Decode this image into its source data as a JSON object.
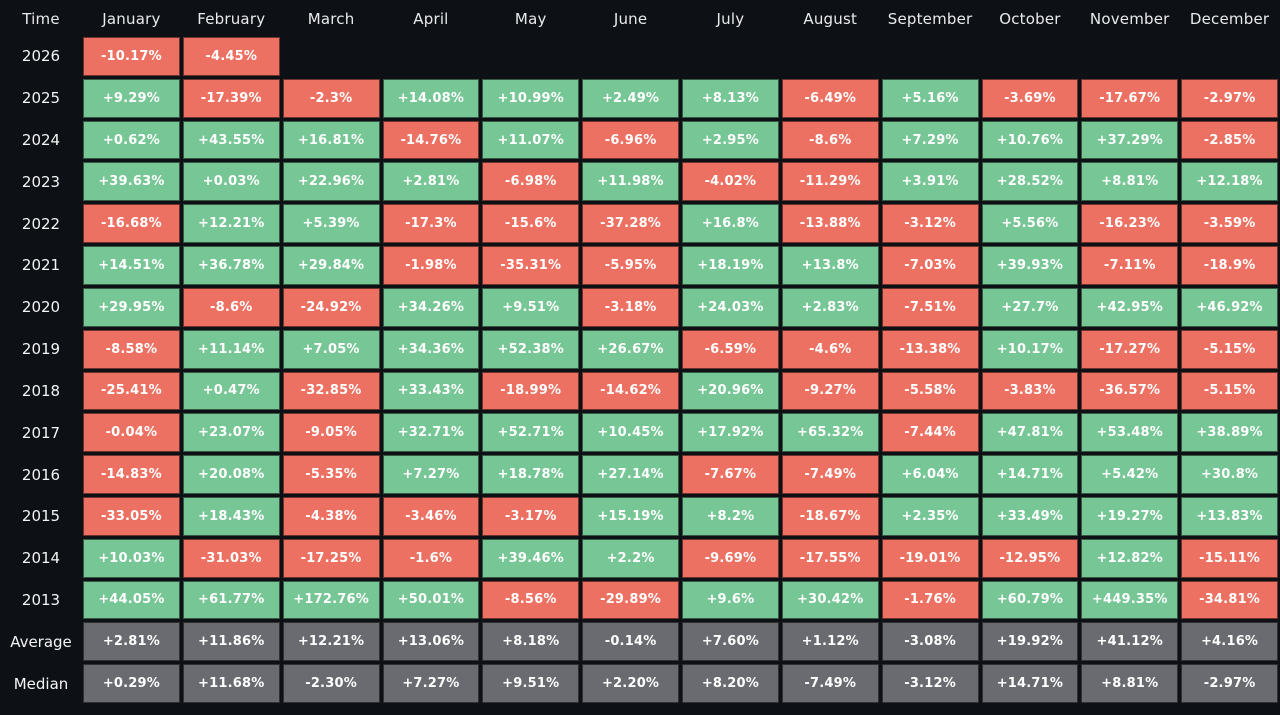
{
  "chart_data": {
    "type": "heatmap",
    "corner": "Time",
    "unit": "%",
    "columns": [
      "January",
      "February",
      "March",
      "April",
      "May",
      "June",
      "July",
      "August",
      "September",
      "October",
      "November",
      "December"
    ],
    "rows": [
      {
        "label": "2026",
        "type": "year",
        "values": [
          "-10.17%",
          "-4.45%",
          null,
          null,
          null,
          null,
          null,
          null,
          null,
          null,
          null,
          null
        ]
      },
      {
        "label": "2025",
        "type": "year",
        "values": [
          "+9.29%",
          "-17.39%",
          "-2.3%",
          "+14.08%",
          "+10.99%",
          "+2.49%",
          "+8.13%",
          "-6.49%",
          "+5.16%",
          "-3.69%",
          "-17.67%",
          "-2.97%"
        ]
      },
      {
        "label": "2024",
        "type": "year",
        "values": [
          "+0.62%",
          "+43.55%",
          "+16.81%",
          "-14.76%",
          "+11.07%",
          "-6.96%",
          "+2.95%",
          "-8.6%",
          "+7.29%",
          "+10.76%",
          "+37.29%",
          "-2.85%"
        ]
      },
      {
        "label": "2023",
        "type": "year",
        "values": [
          "+39.63%",
          "+0.03%",
          "+22.96%",
          "+2.81%",
          "-6.98%",
          "+11.98%",
          "-4.02%",
          "-11.29%",
          "+3.91%",
          "+28.52%",
          "+8.81%",
          "+12.18%"
        ]
      },
      {
        "label": "2022",
        "type": "year",
        "values": [
          "-16.68%",
          "+12.21%",
          "+5.39%",
          "-17.3%",
          "-15.6%",
          "-37.28%",
          "+16.8%",
          "-13.88%",
          "-3.12%",
          "+5.56%",
          "-16.23%",
          "-3.59%"
        ]
      },
      {
        "label": "2021",
        "type": "year",
        "values": [
          "+14.51%",
          "+36.78%",
          "+29.84%",
          "-1.98%",
          "-35.31%",
          "-5.95%",
          "+18.19%",
          "+13.8%",
          "-7.03%",
          "+39.93%",
          "-7.11%",
          "-18.9%"
        ]
      },
      {
        "label": "2020",
        "type": "year",
        "values": [
          "+29.95%",
          "-8.6%",
          "-24.92%",
          "+34.26%",
          "+9.51%",
          "-3.18%",
          "+24.03%",
          "+2.83%",
          "-7.51%",
          "+27.7%",
          "+42.95%",
          "+46.92%"
        ]
      },
      {
        "label": "2019",
        "type": "year",
        "values": [
          "-8.58%",
          "+11.14%",
          "+7.05%",
          "+34.36%",
          "+52.38%",
          "+26.67%",
          "-6.59%",
          "-4.6%",
          "-13.38%",
          "+10.17%",
          "-17.27%",
          "-5.15%"
        ]
      },
      {
        "label": "2018",
        "type": "year",
        "values": [
          "-25.41%",
          "+0.47%",
          "-32.85%",
          "+33.43%",
          "-18.99%",
          "-14.62%",
          "+20.96%",
          "-9.27%",
          "-5.58%",
          "-3.83%",
          "-36.57%",
          "-5.15%"
        ]
      },
      {
        "label": "2017",
        "type": "year",
        "values": [
          "-0.04%",
          "+23.07%",
          "-9.05%",
          "+32.71%",
          "+52.71%",
          "+10.45%",
          "+17.92%",
          "+65.32%",
          "-7.44%",
          "+47.81%",
          "+53.48%",
          "+38.89%"
        ]
      },
      {
        "label": "2016",
        "type": "year",
        "values": [
          "-14.83%",
          "+20.08%",
          "-5.35%",
          "+7.27%",
          "+18.78%",
          "+27.14%",
          "-7.67%",
          "-7.49%",
          "+6.04%",
          "+14.71%",
          "+5.42%",
          "+30.8%"
        ]
      },
      {
        "label": "2015",
        "type": "year",
        "values": [
          "-33.05%",
          "+18.43%",
          "-4.38%",
          "-3.46%",
          "-3.17%",
          "+15.19%",
          "+8.2%",
          "-18.67%",
          "+2.35%",
          "+33.49%",
          "+19.27%",
          "+13.83%"
        ]
      },
      {
        "label": "2014",
        "type": "year",
        "values": [
          "+10.03%",
          "-31.03%",
          "-17.25%",
          "-1.6%",
          "+39.46%",
          "+2.2%",
          "-9.69%",
          "-17.55%",
          "-19.01%",
          "-12.95%",
          "+12.82%",
          "-15.11%"
        ]
      },
      {
        "label": "2013",
        "type": "year",
        "values": [
          "+44.05%",
          "+61.77%",
          "+172.76%",
          "+50.01%",
          "-8.56%",
          "-29.89%",
          "+9.6%",
          "+30.42%",
          "-1.76%",
          "+60.79%",
          "+449.35%",
          "-34.81%"
        ]
      },
      {
        "label": "Average",
        "type": "summary",
        "values": [
          "+2.81%",
          "+11.86%",
          "+12.21%",
          "+13.06%",
          "+8.18%",
          "-0.14%",
          "+7.60%",
          "+1.12%",
          "-3.08%",
          "+19.92%",
          "+41.12%",
          "+4.16%"
        ]
      },
      {
        "label": "Median",
        "type": "summary",
        "values": [
          "+0.29%",
          "+11.68%",
          "-2.30%",
          "+7.27%",
          "+9.51%",
          "+2.20%",
          "+8.20%",
          "-7.49%",
          "-3.12%",
          "+14.71%",
          "+8.81%",
          "-2.97%"
        ]
      }
    ],
    "colors": {
      "positive": "#77c695",
      "negative": "#ed7163",
      "summary": "#6a6b70",
      "background": "#0d1014",
      "cell_text": "#ffffff",
      "header_text": "#e9eaec"
    }
  }
}
